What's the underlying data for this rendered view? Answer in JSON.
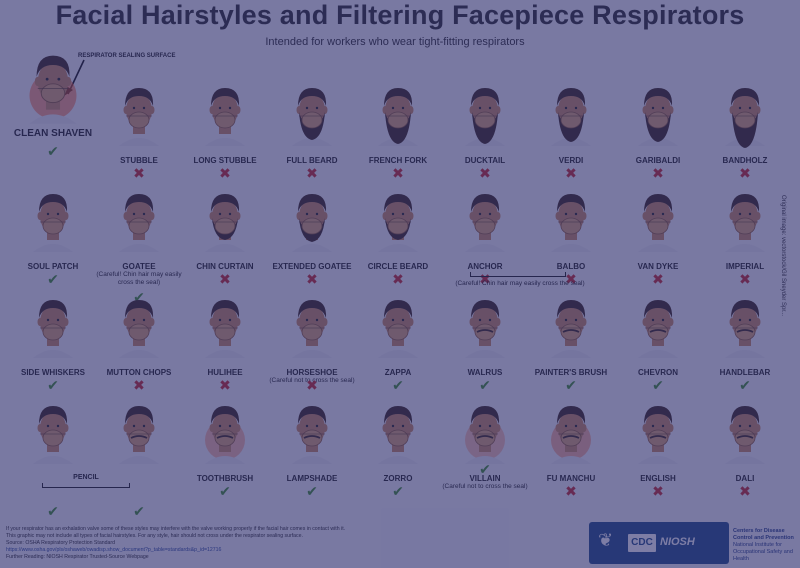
{
  "title": "Facial Hairstyles and Filtering Facepiece Respirators",
  "subtitle": "Intended for workers who wear tight-fitting respirators",
  "seal_label": "RESPIRATOR SEALING SURFACE",
  "colors": {
    "ok": "#3f8f2c",
    "no": "#c62828",
    "skin": "#c98a5e",
    "hair": "#3a2619",
    "mask": "#d9a36e",
    "glow": "#ff5a1f"
  },
  "styles": [
    {
      "label": "CLEAN SHAVEN",
      "ok": true,
      "glyph": "✔"
    },
    {
      "label": "STUBBLE",
      "ok": false,
      "glyph": "✖"
    },
    {
      "label": "LONG STUBBLE",
      "ok": false,
      "glyph": "✖"
    },
    {
      "label": "FULL BEARD",
      "ok": false,
      "glyph": "✖"
    },
    {
      "label": "FRENCH FORK",
      "ok": false,
      "glyph": "✖"
    },
    {
      "label": "DUCKTAIL",
      "ok": false,
      "glyph": "✖"
    },
    {
      "label": "VERDI",
      "ok": false,
      "glyph": "✖"
    },
    {
      "label": "GARIBALDI",
      "ok": false,
      "glyph": "✖"
    },
    {
      "label": "BANDHOLZ",
      "ok": false,
      "glyph": "✖"
    },
    {
      "label": "SOUL PATCH",
      "ok": true,
      "glyph": "✔"
    },
    {
      "label": "GOATEE",
      "ok": true,
      "glyph": "✔",
      "note": "(Careful! Chin hair may easily cross the seal)"
    },
    {
      "label": "CHIN CURTAIN",
      "ok": false,
      "glyph": "✖"
    },
    {
      "label": "EXTENDED GOATEE",
      "ok": false,
      "glyph": "✖"
    },
    {
      "label": "CIRCLE BEARD",
      "ok": false,
      "glyph": "✖"
    },
    {
      "label": "ANCHOR",
      "ok": false,
      "glyph": "✖"
    },
    {
      "label": "BALBO",
      "ok": false,
      "glyph": "✖"
    },
    {
      "label": "VAN DYKE",
      "ok": false,
      "glyph": "✖"
    },
    {
      "label": "IMPERIAL",
      "ok": false,
      "glyph": "✖"
    },
    {
      "label": "SIDE WHISKERS",
      "ok": true,
      "glyph": "✔"
    },
    {
      "label": "MUTTON CHOPS",
      "ok": false,
      "glyph": "✖"
    },
    {
      "label": "HULIHEE",
      "ok": false,
      "glyph": "✖"
    },
    {
      "label": "HORSESHOE",
      "ok": false,
      "glyph": "✖",
      "note": "(Careful not to cross the seal)"
    },
    {
      "label": "ZAPPA",
      "ok": true,
      "glyph": "✔"
    },
    {
      "label": "WALRUS",
      "ok": true,
      "glyph": "✔"
    },
    {
      "label": "PAINTER'S BRUSH",
      "ok": true,
      "glyph": "✔"
    },
    {
      "label": "CHEVRON",
      "ok": true,
      "glyph": "✔"
    },
    {
      "label": "HANDLEBAR",
      "ok": true,
      "glyph": "✔"
    },
    {
      "label": "",
      "ok": true,
      "glyph": "✔"
    },
    {
      "label": "",
      "ok": true,
      "glyph": "✔"
    },
    {
      "label": "TOOTHBRUSH",
      "ok": true,
      "glyph": "✔"
    },
    {
      "label": "LAMPSHADE",
      "ok": true,
      "glyph": "✔"
    },
    {
      "label": "ZORRO",
      "ok": true,
      "glyph": "✔"
    },
    {
      "label": "VILLAIN",
      "ok": true,
      "glyph": "✔",
      "note": "(Careful not to cross the seal)"
    },
    {
      "label": "FU MANCHU",
      "ok": false,
      "glyph": "✖"
    },
    {
      "label": "ENGLISH",
      "ok": false,
      "glyph": "✖"
    },
    {
      "label": "DALI",
      "ok": false,
      "glyph": "✖"
    }
  ],
  "groups": {
    "anchor_balbo_note": "(Careful! Chin hair may easily cross the seal)",
    "pencil_label": "PENCIL"
  },
  "footer": {
    "line1": "If your respirator has an exhalation valve some of these styles may interfere with the valve working properly if the facial hair comes in contact with it.",
    "line2": "This graphic may not include all types of facial hairstyles. For any style, hair should not cross under the respirator sealing surface.",
    "line3": "Source: OSHA Respiratory Protection Standard",
    "line4": "https://www.osha.gov/pls/oshaweb/owadisp.show_document?p_table=standards&p_id=12716",
    "line5": "Further Reading: NIOSH Respirator Trusted-Source Webpage"
  },
  "credit": "Original image: vectorstock/Gil Sneyder Spr...",
  "logo": {
    "cdc": "CDC",
    "niosh": "NIOSH",
    "agency_line1": "Centers for Disease Control and Prevention",
    "agency_line2": "National Institute for Occupational Safety and Health"
  }
}
